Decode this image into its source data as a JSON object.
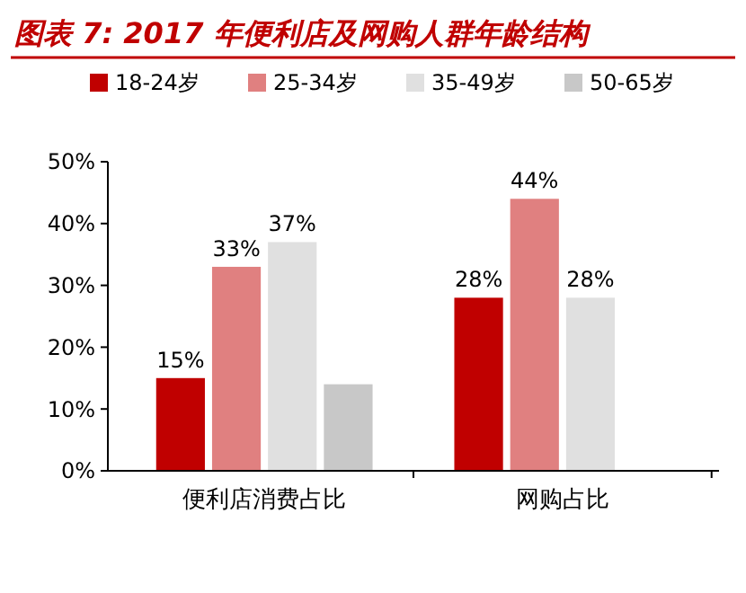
{
  "chart_data": {
    "type": "bar",
    "title": "图表 7: 2017 年便利店及网购人群年龄结构",
    "categories": [
      "便利店消费占比",
      "网购占比"
    ],
    "series": [
      {
        "name": "18-24岁",
        "color": "#c00000",
        "values": [
          15,
          28
        ],
        "value_labels": [
          "15%",
          "28%"
        ]
      },
      {
        "name": "25-34岁",
        "color": "#e08080",
        "values": [
          33,
          44
        ],
        "value_labels": [
          "33%",
          "44%"
        ]
      },
      {
        "name": "35-49岁",
        "color": "#e0e0e0",
        "values": [
          37,
          28
        ],
        "value_labels": [
          "37%",
          "28%"
        ]
      },
      {
        "name": "50-65岁",
        "color": "#c8c8c8",
        "values": [
          14,
          null
        ],
        "value_labels": [
          null,
          null
        ]
      }
    ],
    "ylim": [
      0,
      50
    ],
    "yticks": [
      {
        "value": 0,
        "label": "0%"
      },
      {
        "value": 10,
        "label": "10%"
      },
      {
        "value": 20,
        "label": "20%"
      },
      {
        "value": 30,
        "label": "30%"
      },
      {
        "value": 40,
        "label": "40%"
      },
      {
        "value": 50,
        "label": "50%"
      }
    ],
    "legend": "top",
    "grid": false
  }
}
